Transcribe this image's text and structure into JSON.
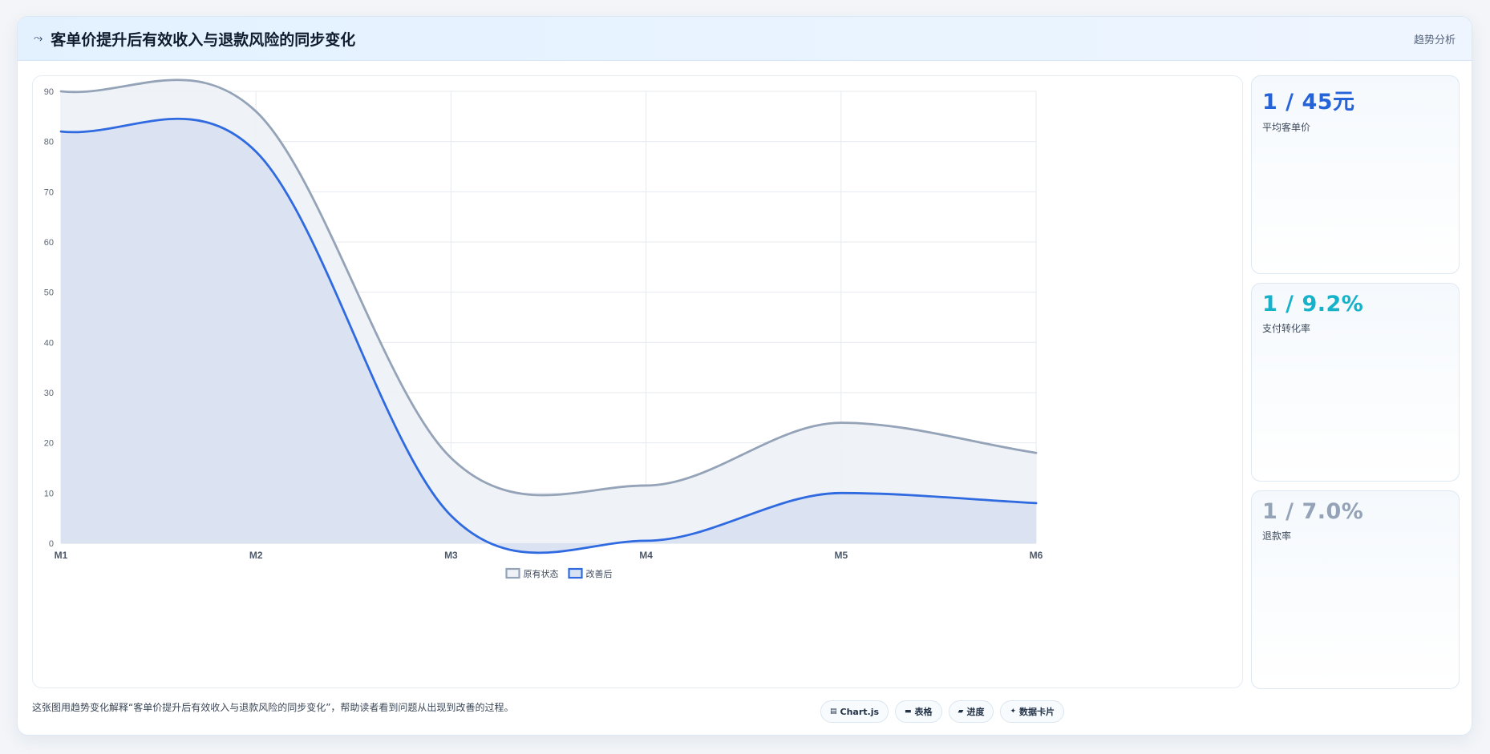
{
  "header": {
    "icon": "sparkline-icon",
    "title": "客单价提升后有效收入与退款风险的同步变化",
    "tag": "趋势分析"
  },
  "kpis": [
    {
      "value": "1 / 45元",
      "label": "平均客单价",
      "color": "#2563d9"
    },
    {
      "value": "1 / 9.2%",
      "label": "支付转化率",
      "color": "#16b2c9"
    },
    {
      "value": "1 / 7.0%",
      "label": "退款率",
      "color": "#94a3b8"
    }
  ],
  "footer": {
    "text": "这张图用趋势变化解释“客单价提升后有效收入与退款风险的同步变化”，帮助读者看到问题从出现到改善的过程。",
    "chips": [
      {
        "icon": "chart-icon",
        "glyph": "▤",
        "label": "Chart.js"
      },
      {
        "icon": "table-icon",
        "glyph": "▬",
        "label": "表格"
      },
      {
        "icon": "progress-icon",
        "glyph": "▰",
        "label": "进度"
      },
      {
        "icon": "card-icon",
        "glyph": "✦",
        "label": "数据卡片"
      }
    ]
  },
  "chart_data": {
    "type": "area",
    "categories": [
      "M1",
      "M2",
      "M3",
      "M4",
      "M5",
      "M6"
    ],
    "series": [
      {
        "name": "原有状态",
        "values": [
          90,
          86,
          17,
          11.5,
          24,
          18
        ],
        "color": "#94a3b8",
        "fill": "#eef1f5"
      },
      {
        "name": "改善后",
        "values": [
          82,
          78,
          5.5,
          0.5,
          10,
          8
        ],
        "color": "#2f6ae0",
        "fill": "#d9e2f1"
      }
    ],
    "ylim": [
      0,
      90
    ],
    "yticks": [
      0,
      10,
      20,
      30,
      40,
      50,
      60,
      70,
      80,
      90
    ],
    "grid": true,
    "legend": "bottom-center"
  }
}
